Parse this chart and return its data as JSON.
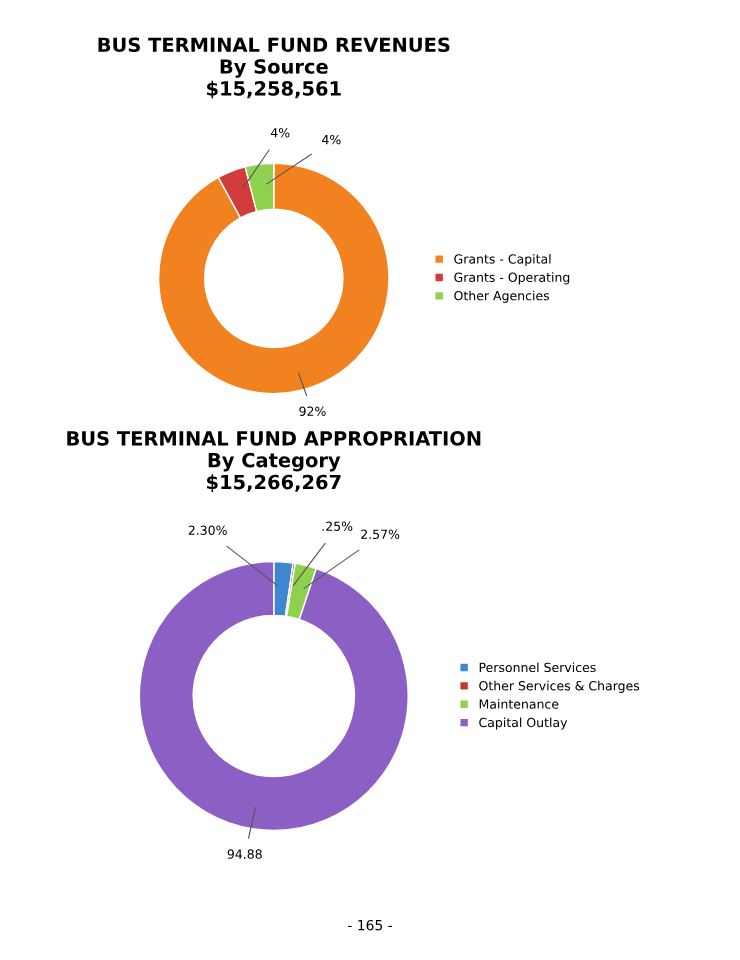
{
  "chart_data": [
    {
      "type": "donut",
      "title": "BUS TERMINAL FUND REVENUES\nBy Source\n$15,258,561",
      "categories": [
        "Grants - Capital",
        "Grants - Operating",
        "Other Agencies"
      ],
      "values": [
        92,
        4,
        4
      ],
      "colors": [
        "#f28220",
        "#d33a3a",
        "#8fd14f"
      ],
      "value_labels": [
        "92%",
        "4%",
        "4%"
      ],
      "legend": "right"
    },
    {
      "type": "donut",
      "title": "BUS TERMINAL FUND APPROPRIATION\nBy Category\n$15,266,267",
      "categories": [
        "Personnel Services",
        "Other Services & Charges",
        "Maintenance",
        "Capital Outlay"
      ],
      "values": [
        2.3,
        0.25,
        2.57,
        94.88
      ],
      "colors": [
        "#3f86d0",
        "#c0392b",
        "#8fd14f",
        "#8b5fc4"
      ],
      "value_labels": [
        "2.30%",
        ".25%",
        "2.57%",
        "94.88"
      ],
      "legend": "right",
      "annotations": [
        "- 165 -"
      ]
    }
  ]
}
